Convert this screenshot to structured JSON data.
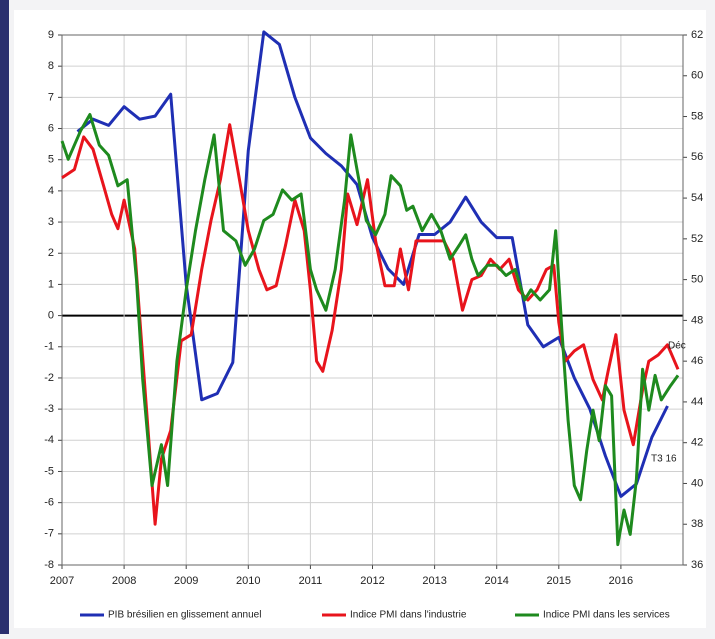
{
  "chart_data": {
    "type": "line",
    "xlim": [
      2007,
      2017
    ],
    "xticks": [
      2007,
      2008,
      2009,
      2010,
      2011,
      2012,
      2013,
      2014,
      2015,
      2016
    ],
    "ylim": [
      -8,
      9
    ],
    "yticks": [
      -8,
      -7,
      -6,
      -5,
      -4,
      -3,
      -2,
      -1,
      0,
      1,
      2,
      3,
      4,
      5,
      6,
      7,
      8,
      9
    ],
    "y2lim": [
      36,
      62
    ],
    "y2ticks": [
      36,
      38,
      40,
      42,
      44,
      46,
      48,
      50,
      52,
      54,
      56,
      58,
      60,
      62
    ],
    "grid": true,
    "legend": "bottom",
    "annotations": [
      "Déc",
      "T3 16"
    ],
    "series": [
      {
        "name": "PIB brésilien en glissement annuel",
        "color": "#1f2fb4",
        "x": [
          2007.25,
          2007.5,
          2007.75,
          2008.0,
          2008.25,
          2008.5,
          2008.75,
          2009.0,
          2009.25,
          2009.5,
          2009.75,
          2010.0,
          2010.25,
          2010.5,
          2010.75,
          2011.0,
          2011.25,
          2011.5,
          2011.75,
          2012.0,
          2012.25,
          2012.5,
          2012.75,
          2013.0,
          2013.25,
          2013.5,
          2013.75,
          2014.0,
          2014.25,
          2014.5,
          2014.75,
          2015.0,
          2015.25,
          2015.5,
          2015.75,
          2016.0,
          2016.25,
          2016.5,
          2016.75
        ],
        "values": [
          5.9,
          6.3,
          6.1,
          6.7,
          6.3,
          6.4,
          7.1,
          1.0,
          -2.7,
          -2.5,
          -1.5,
          5.3,
          9.1,
          8.7,
          7.0,
          5.7,
          5.2,
          4.8,
          4.2,
          2.5,
          1.5,
          1.0,
          2.6,
          2.6,
          3.0,
          3.8,
          3.0,
          2.5,
          2.5,
          -0.3,
          -1.0,
          -0.7,
          -2.0,
          -3.0,
          -4.5,
          -5.8,
          -5.4,
          -3.9,
          -2.9
        ]
      },
      {
        "name": "Indice PMI dans l'industrie",
        "color": "#e8141c",
        "axis": "y2",
        "x": [
          2007.0,
          2007.2,
          2007.35,
          2007.5,
          2007.67,
          2007.8,
          2007.9,
          2008.0,
          2008.17,
          2008.35,
          2008.5,
          2008.6,
          2008.75,
          2008.92,
          2009.08,
          2009.25,
          2009.4,
          2009.55,
          2009.7,
          2009.83,
          2010.0,
          2010.17,
          2010.3,
          2010.45,
          2010.6,
          2010.75,
          2010.9,
          2011.0,
          2011.1,
          2011.2,
          2011.35,
          2011.5,
          2011.6,
          2011.75,
          2011.92,
          2012.05,
          2012.2,
          2012.35,
          2012.45,
          2012.58,
          2012.7,
          2012.85,
          2013.0,
          2013.15,
          2013.3,
          2013.45,
          2013.6,
          2013.75,
          2013.9,
          2014.05,
          2014.2,
          2014.35,
          2014.5,
          2014.65,
          2014.8,
          2014.92,
          2015.0,
          2015.1,
          2015.25,
          2015.4,
          2015.55,
          2015.7,
          2015.8,
          2015.92,
          2016.05,
          2016.2,
          2016.35,
          2016.45,
          2016.6,
          2016.75,
          2016.92
        ],
        "values": [
          55.0,
          55.4,
          57.0,
          56.4,
          54.6,
          53.2,
          52.5,
          53.9,
          51.5,
          44.1,
          38.0,
          41.2,
          42.6,
          47.0,
          47.3,
          50.5,
          52.9,
          54.9,
          57.6,
          55.4,
          52.4,
          50.5,
          49.5,
          49.7,
          51.7,
          53.9,
          52.4,
          49.5,
          46.0,
          45.5,
          47.5,
          50.5,
          54.2,
          52.7,
          54.9,
          51.9,
          49.7,
          49.7,
          51.5,
          49.5,
          51.9,
          51.9,
          51.9,
          51.9,
          51.0,
          48.5,
          50.0,
          50.2,
          51.0,
          50.5,
          51.0,
          49.5,
          49.0,
          49.5,
          50.5,
          50.7,
          47.9,
          46.0,
          46.5,
          46.8,
          45.1,
          44.1,
          45.6,
          47.3,
          43.6,
          41.9,
          44.6,
          46.0,
          46.3,
          46.8,
          45.6
        ]
      },
      {
        "name": "Indice PMI dans les services",
        "color": "#1e8a1e",
        "axis": "y2",
        "x": [
          2007.0,
          2007.1,
          2007.3,
          2007.45,
          2007.6,
          2007.75,
          2007.9,
          2008.05,
          2008.2,
          2008.3,
          2008.45,
          2008.6,
          2008.7,
          2008.85,
          2009.0,
          2009.15,
          2009.3,
          2009.45,
          2009.6,
          2009.8,
          2009.95,
          2010.1,
          2010.25,
          2010.4,
          2010.55,
          2010.7,
          2010.85,
          2011.0,
          2011.1,
          2011.25,
          2011.4,
          2011.55,
          2011.65,
          2011.75,
          2011.9,
          2012.05,
          2012.2,
          2012.3,
          2012.45,
          2012.55,
          2012.65,
          2012.8,
          2012.95,
          2013.1,
          2013.25,
          2013.4,
          2013.5,
          2013.6,
          2013.7,
          2013.85,
          2014.0,
          2014.15,
          2014.3,
          2014.45,
          2014.55,
          2014.7,
          2014.85,
          2014.95,
          2015.05,
          2015.15,
          2015.25,
          2015.35,
          2015.45,
          2015.55,
          2015.65,
          2015.75,
          2015.85,
          2015.95,
          2016.05,
          2016.15,
          2016.25,
          2016.35,
          2016.45,
          2016.55,
          2016.65,
          2016.8,
          2016.92
        ],
        "values": [
          56.8,
          55.9,
          57.3,
          58.1,
          56.6,
          56.1,
          54.6,
          54.9,
          50.0,
          45.1,
          39.9,
          41.9,
          39.9,
          46.0,
          49.5,
          52.4,
          54.9,
          57.1,
          52.4,
          51.9,
          50.7,
          51.5,
          52.9,
          53.2,
          54.4,
          53.9,
          54.2,
          50.5,
          49.5,
          48.5,
          50.5,
          53.9,
          57.1,
          55.4,
          52.9,
          52.2,
          53.2,
          55.1,
          54.6,
          53.4,
          53.6,
          52.4,
          53.2,
          52.4,
          51.0,
          51.7,
          52.2,
          51.0,
          50.2,
          50.7,
          50.7,
          50.2,
          50.5,
          49.0,
          49.5,
          49.0,
          49.5,
          52.4,
          47.5,
          43.1,
          39.9,
          39.2,
          41.6,
          43.6,
          42.1,
          44.8,
          44.3,
          37.0,
          38.7,
          37.5,
          40.2,
          45.6,
          43.6,
          45.3,
          44.1,
          44.8,
          45.3
        ]
      }
    ]
  }
}
